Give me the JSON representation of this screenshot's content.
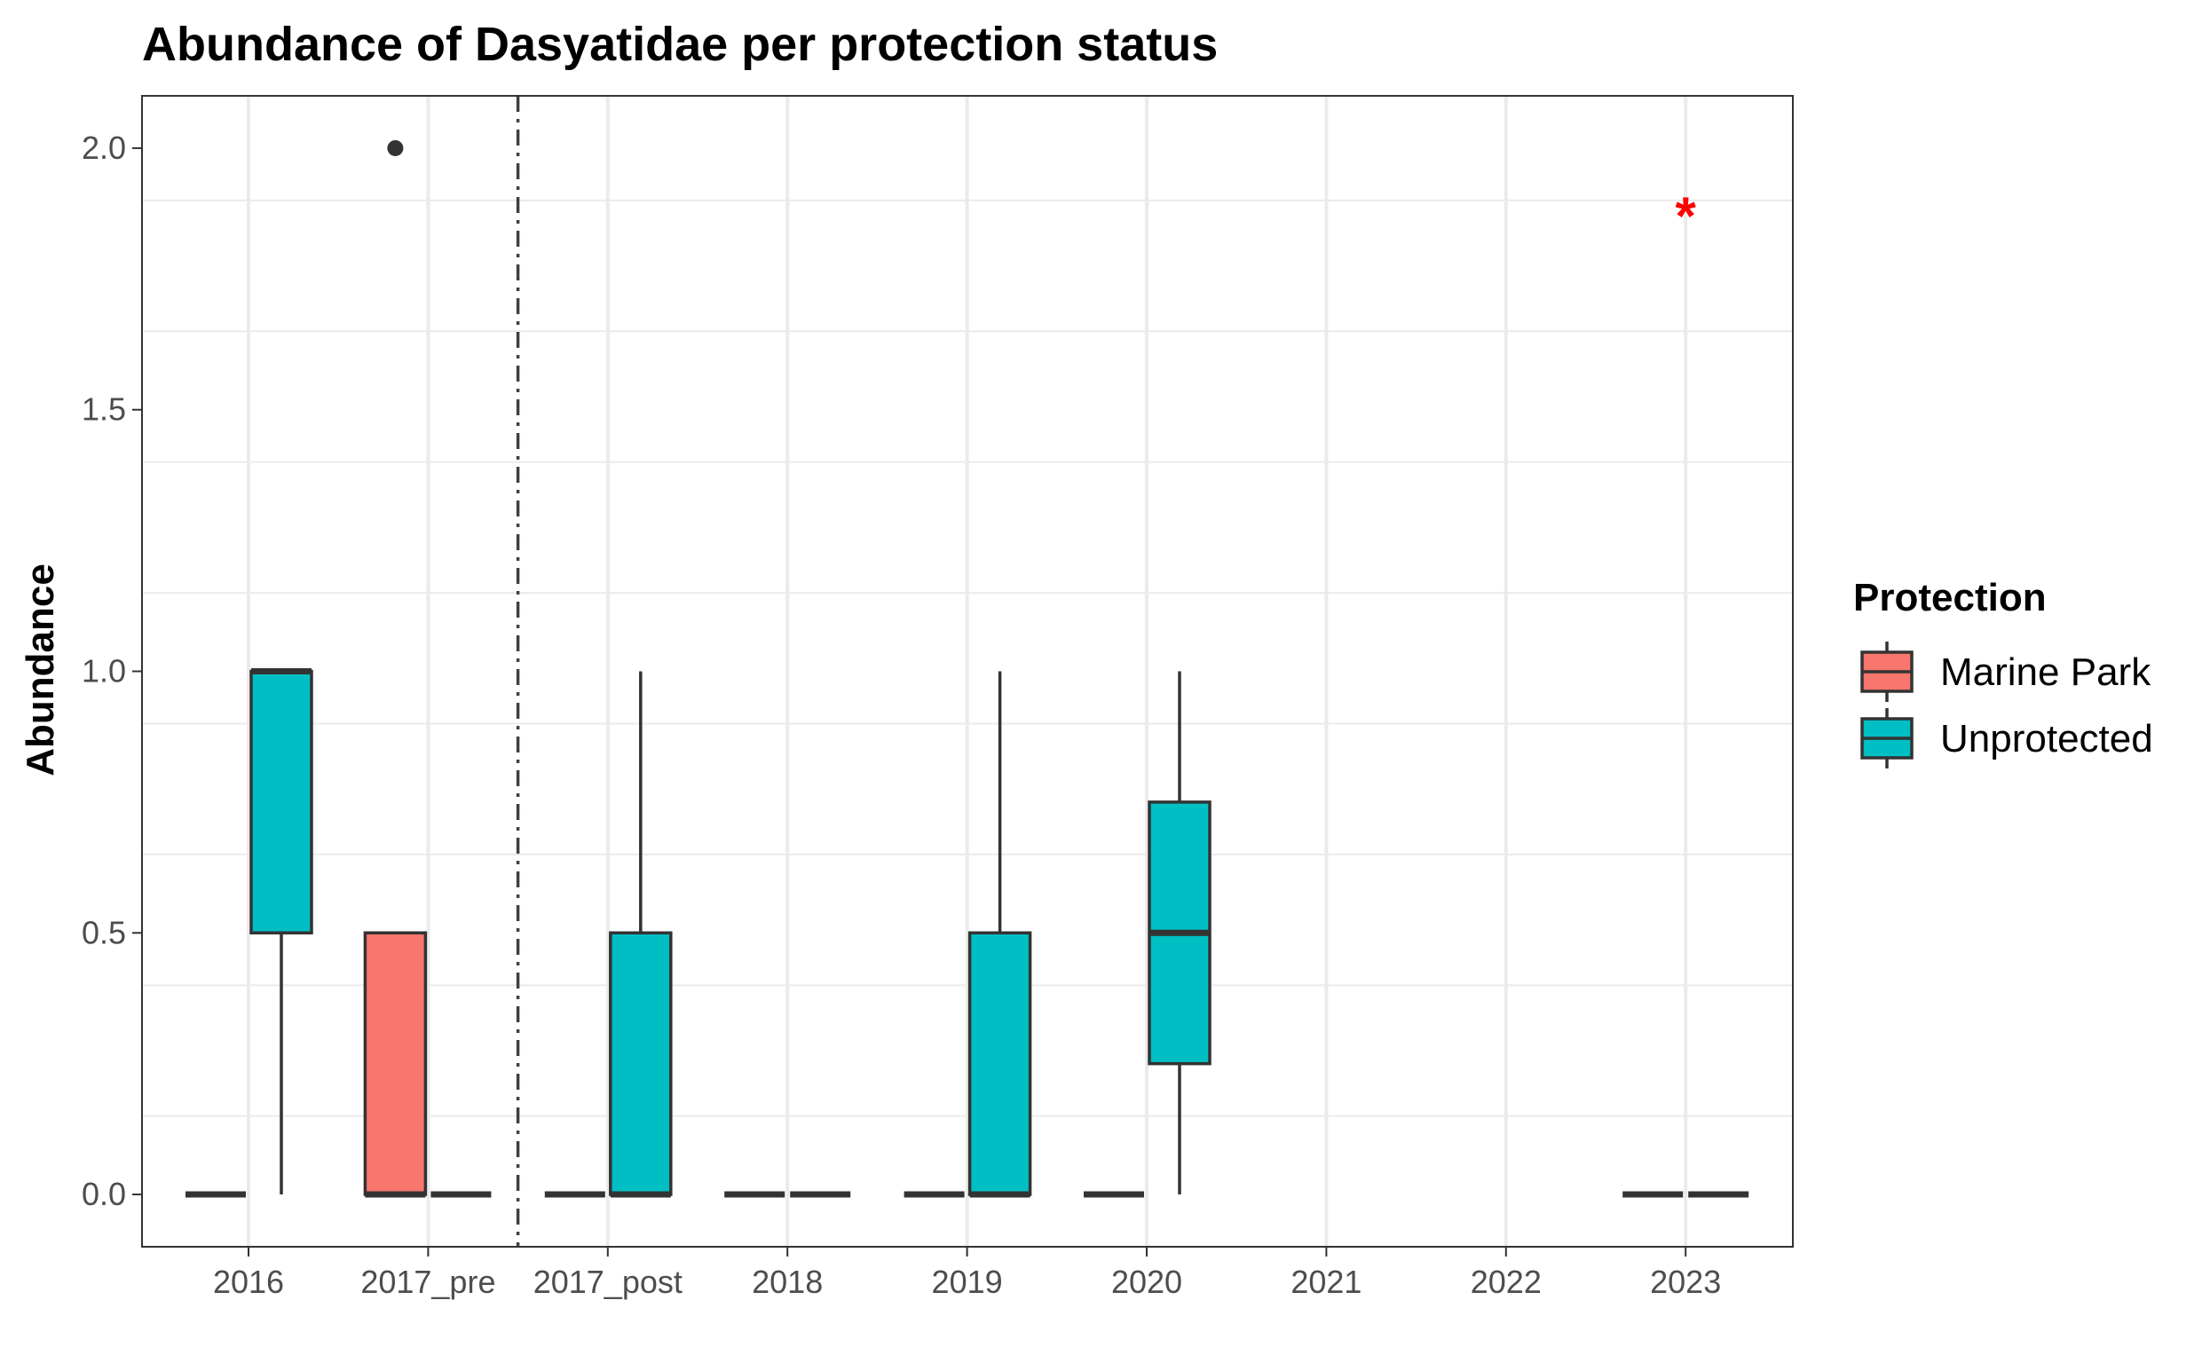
{
  "chart_data": {
    "type": "box",
    "title": "Abundance of Dasyatidae per protection status",
    "xlabel": "",
    "ylabel": "Abundance",
    "categories": [
      "2016",
      "2017_pre",
      "2017_post",
      "2018",
      "2019",
      "2020",
      "2021",
      "2022",
      "2023"
    ],
    "ylim": [
      -0.1,
      2.1
    ],
    "yticks": [
      0.0,
      0.5,
      1.0,
      1.5,
      2.0
    ],
    "ytick_labels": [
      "0.0",
      "0.5",
      "1.0",
      "1.5",
      "2.0"
    ],
    "grid": true,
    "legend": {
      "title": "Protection",
      "position": "right",
      "entries": [
        {
          "label": "Marine Park",
          "color": "#F8766D"
        },
        {
          "label": "Unprotected",
          "color": "#00BFC4"
        }
      ]
    },
    "series": [
      {
        "name": "Marine Park",
        "color": "#F8766D",
        "boxes": [
          {
            "category": "2016",
            "min": 0,
            "q1": 0,
            "median": 0,
            "q3": 0,
            "max": 0,
            "outliers": []
          },
          {
            "category": "2017_pre",
            "min": 0,
            "q1": 0,
            "median": 0,
            "q3": 0.5,
            "max": 0.5,
            "outliers": [
              2.0
            ]
          },
          {
            "category": "2017_post",
            "min": 0,
            "q1": 0,
            "median": 0,
            "q3": 0,
            "max": 0,
            "outliers": []
          },
          {
            "category": "2018",
            "min": 0,
            "q1": 0,
            "median": 0,
            "q3": 0,
            "max": 0,
            "outliers": []
          },
          {
            "category": "2019",
            "min": 0,
            "q1": 0,
            "median": 0,
            "q3": 0,
            "max": 0,
            "outliers": []
          },
          {
            "category": "2020",
            "min": 0,
            "q1": 0,
            "median": 0,
            "q3": 0,
            "max": 0,
            "outliers": []
          },
          {
            "category": "2023",
            "min": 0,
            "q1": 0,
            "median": 0,
            "q3": 0,
            "max": 0,
            "outliers": []
          }
        ]
      },
      {
        "name": "Unprotected",
        "color": "#00BFC4",
        "boxes": [
          {
            "category": "2016",
            "min": 0,
            "q1": 0.5,
            "median": 1.0,
            "q3": 1.0,
            "max": 1.0,
            "outliers": []
          },
          {
            "category": "2017_pre",
            "min": 0,
            "q1": 0,
            "median": 0,
            "q3": 0,
            "max": 0,
            "outliers": []
          },
          {
            "category": "2017_post",
            "min": 0,
            "q1": 0,
            "median": 0,
            "q3": 0.5,
            "max": 1.0,
            "outliers": []
          },
          {
            "category": "2018",
            "min": 0,
            "q1": 0,
            "median": 0,
            "q3": 0,
            "max": 0,
            "outliers": []
          },
          {
            "category": "2019",
            "min": 0,
            "q1": 0,
            "median": 0,
            "q3": 0.5,
            "max": 1.0,
            "outliers": []
          },
          {
            "category": "2020",
            "min": 0,
            "q1": 0.25,
            "median": 0.5,
            "q3": 0.75,
            "max": 1.0,
            "outliers": []
          },
          {
            "category": "2023",
            "min": 0,
            "q1": 0,
            "median": 0,
            "q3": 0,
            "max": 0,
            "outliers": []
          }
        ]
      }
    ],
    "reference_line": {
      "between": [
        "2017_pre",
        "2017_post"
      ],
      "style": "dash-dot"
    },
    "annotations": [
      {
        "text": "*",
        "category": "2023",
        "y": 1.9,
        "color": "#FF0000"
      }
    ]
  }
}
